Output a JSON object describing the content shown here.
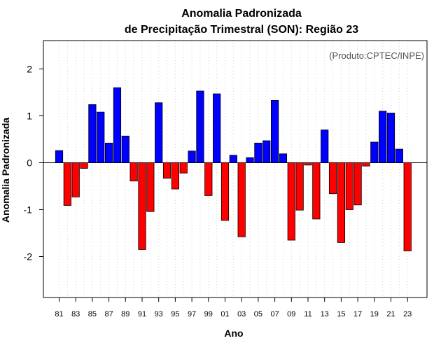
{
  "chart_data": {
    "type": "bar",
    "title_line1": "Anomalia Padronizada",
    "title_line2": "de Precipitação Trimestral (SON): Região 23",
    "xlabel": "Ano",
    "ylabel": "Anomalia Padronizada",
    "credit": "(Produto:CPTEC/INPE)",
    "ylim": [
      -2.9,
      2.6
    ],
    "yticks": [
      "-2",
      "-1",
      "0",
      "1",
      "2"
    ],
    "ytick_values": [
      -2,
      -1,
      0,
      1,
      2
    ],
    "grid": "vertical dotted",
    "positive_color": "#0000ff",
    "negative_color": "#ff0000",
    "categories": [
      "81",
      "82",
      "83",
      "84",
      "85",
      "86",
      "87",
      "88",
      "89",
      "90",
      "91",
      "92",
      "93",
      "94",
      "95",
      "96",
      "97",
      "98",
      "99",
      "00",
      "01",
      "02",
      "03",
      "04",
      "05",
      "06",
      "07",
      "08",
      "09",
      "10",
      "11",
      "12",
      "13",
      "14",
      "15",
      "16",
      "17",
      "18",
      "19",
      "20",
      "21",
      "22",
      "23"
    ],
    "x_tick_labels": [
      "81",
      "83",
      "85",
      "87",
      "89",
      "91",
      "93",
      "95",
      "97",
      "99",
      "01",
      "03",
      "05",
      "07",
      "09",
      "11",
      "13",
      "15",
      "17",
      "19",
      "21",
      "23"
    ],
    "values": [
      0.26,
      -0.91,
      -0.73,
      -0.12,
      1.24,
      1.08,
      0.42,
      1.6,
      0.57,
      -0.39,
      -1.85,
      -1.04,
      1.28,
      -0.33,
      -0.56,
      -0.22,
      0.25,
      1.53,
      -0.7,
      1.47,
      -1.23,
      0.16,
      -1.58,
      0.11,
      0.42,
      0.47,
      1.33,
      0.19,
      -1.65,
      -1.01,
      -0.05,
      -1.2,
      0.7,
      -0.66,
      -1.7,
      -1.0,
      -0.9,
      -0.07,
      0.44,
      1.1,
      1.06,
      0.29,
      -1.88
    ]
  }
}
